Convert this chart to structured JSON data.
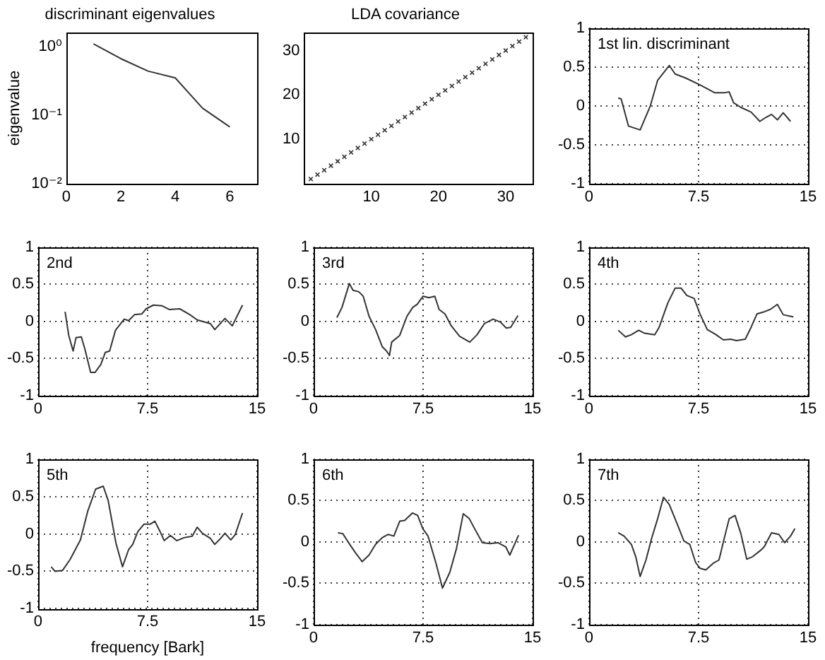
{
  "chart_data": [
    {
      "type": "line",
      "title": "discriminant eigenvalues",
      "ylabel": "eigenvalue",
      "log": "y",
      "x": [
        1,
        2,
        3,
        4,
        5,
        6
      ],
      "series": [
        {
          "color": "#333333",
          "values": [
            1.1,
            0.67,
            0.44,
            0.35,
            0.126,
            0.067
          ]
        }
      ],
      "xlim": [
        0,
        7
      ],
      "xticks": [
        0,
        2,
        4,
        6
      ],
      "ylim": [
        0.01,
        1.6
      ],
      "yticks": [
        {
          "value": 0.01,
          "label": "10⁻²"
        },
        {
          "value": 0.1,
          "label": "10⁻¹"
        },
        {
          "value": 1,
          "label": "10⁰"
        }
      ]
    },
    {
      "type": "scatter",
      "title": "LDA covariance",
      "marker": "cross",
      "x": [
        1,
        2,
        3,
        4,
        5,
        6,
        7,
        8,
        9,
        10,
        11,
        12,
        13,
        14,
        15,
        16,
        17,
        18,
        19,
        20,
        21,
        22,
        23,
        24,
        25,
        26,
        27,
        28,
        29,
        30,
        31,
        32,
        33
      ],
      "series": [
        {
          "color": "#333333",
          "values": [
            1,
            2,
            3,
            4,
            5,
            6,
            7,
            8,
            9,
            10,
            11,
            12,
            13,
            14,
            15,
            16,
            17,
            18,
            19,
            20,
            21,
            22,
            23,
            24,
            25,
            26,
            27,
            28,
            29,
            30,
            31,
            32,
            33
          ]
        }
      ],
      "xlim": [
        0,
        34
      ],
      "xticks": [
        10,
        20,
        30
      ],
      "ylim": [
        0,
        34
      ],
      "yticks": [
        10,
        20,
        30
      ]
    },
    {
      "type": "line",
      "annotations": [
        "1st lin. discriminant"
      ],
      "grid": true,
      "x": [
        2.0,
        2.2,
        2.7,
        3.5,
        4.2,
        4.7,
        5.5,
        5.9,
        6.6,
        7.6,
        8.1,
        8.6,
        9.3,
        9.6,
        9.9,
        10.4,
        11.1,
        11.7,
        12.1,
        12.5,
        12.9,
        13.3,
        13.8
      ],
      "series": [
        {
          "color": "#333333",
          "values": [
            0.1,
            0.09,
            -0.26,
            -0.31,
            0.0,
            0.33,
            0.52,
            0.41,
            0.36,
            0.27,
            0.22,
            0.17,
            0.17,
            0.18,
            0.04,
            -0.02,
            -0.08,
            -0.2,
            -0.15,
            -0.11,
            -0.18,
            -0.09,
            -0.2
          ]
        }
      ],
      "xlim": [
        0,
        15
      ],
      "xticks": [
        0,
        7.5,
        15
      ],
      "ylim": [
        -1,
        1
      ],
      "yticks": [
        -1,
        -0.5,
        0,
        0.5,
        1
      ]
    },
    {
      "type": "line",
      "annotations": [
        "2nd"
      ],
      "grid": true,
      "x": [
        1.85,
        2.1,
        2.4,
        2.6,
        2.96,
        3.2,
        3.6,
        3.9,
        4.3,
        4.6,
        4.9,
        5.3,
        5.9,
        6.2,
        6.6,
        7.1,
        7.4,
        7.9,
        8.5,
        9.0,
        9.7,
        10.4,
        10.9,
        11.8,
        12.1,
        12.8,
        13.3,
        14.0
      ],
      "series": [
        {
          "color": "#333333",
          "values": [
            0.13,
            -0.19,
            -0.4,
            -0.22,
            -0.21,
            -0.37,
            -0.69,
            -0.69,
            -0.58,
            -0.42,
            -0.4,
            -0.12,
            0.03,
            0.01,
            0.09,
            0.1,
            0.17,
            0.22,
            0.21,
            0.16,
            0.17,
            0.09,
            0.02,
            -0.03,
            -0.11,
            0.04,
            -0.06,
            0.22
          ]
        }
      ],
      "xlim": [
        0,
        15
      ],
      "xticks": [
        0,
        7.5,
        15
      ],
      "ylim": [
        -1,
        1
      ],
      "yticks": [
        -1,
        -0.5,
        0,
        0.5,
        1
      ]
    },
    {
      "type": "line",
      "annotations": [
        "3rd"
      ],
      "grid": true,
      "x": [
        1.6,
        1.95,
        2.45,
        2.7,
        3.1,
        3.4,
        3.8,
        4.25,
        4.7,
        5.0,
        5.2,
        5.35,
        5.9,
        6.4,
        6.8,
        7.1,
        7.5,
        7.9,
        8.3,
        8.6,
        9.0,
        9.4,
        10.0,
        10.7,
        11.2,
        11.7,
        12.3,
        12.8,
        13.2,
        13.5,
        14.0
      ],
      "series": [
        {
          "color": "#333333",
          "values": [
            0.05,
            0.19,
            0.51,
            0.42,
            0.4,
            0.34,
            0.07,
            -0.11,
            -0.34,
            -0.4,
            -0.46,
            -0.28,
            -0.19,
            0.07,
            0.19,
            0.23,
            0.34,
            0.32,
            0.34,
            0.16,
            0.1,
            -0.05,
            -0.2,
            -0.28,
            -0.18,
            -0.03,
            0.03,
            -0.01,
            -0.09,
            -0.08,
            0.08
          ]
        }
      ],
      "xlim": [
        0,
        15
      ],
      "xticks": [
        0,
        7.5,
        15
      ],
      "ylim": [
        -1,
        1
      ],
      "yticks": [
        -1,
        -0.5,
        0,
        0.5,
        1
      ]
    },
    {
      "type": "line",
      "annotations": [
        "4th"
      ],
      "grid": true,
      "x": [
        2.0,
        2.5,
        2.9,
        3.4,
        3.8,
        4.5,
        4.8,
        5.4,
        5.9,
        6.3,
        6.7,
        7.2,
        7.6,
        8.1,
        8.7,
        9.2,
        9.7,
        10.1,
        10.7,
        11.1,
        11.5,
        12.0,
        12.4,
        12.9,
        13.3,
        14.0
      ],
      "series": [
        {
          "color": "#333333",
          "values": [
            -0.12,
            -0.21,
            -0.18,
            -0.12,
            -0.16,
            -0.18,
            -0.08,
            0.25,
            0.45,
            0.45,
            0.35,
            0.31,
            0.1,
            -0.11,
            -0.18,
            -0.25,
            -0.24,
            -0.26,
            -0.24,
            -0.08,
            0.1,
            0.13,
            0.16,
            0.23,
            0.09,
            0.06
          ]
        }
      ],
      "xlim": [
        0,
        15
      ],
      "xticks": [
        0,
        7.5,
        15
      ],
      "ylim": [
        -1,
        1
      ],
      "yticks": [
        -1,
        -0.5,
        0,
        0.5,
        1
      ]
    },
    {
      "type": "line",
      "annotations": [
        "5th"
      ],
      "xlabel": "frequency [Bark]",
      "grid": true,
      "x": [
        0.9,
        1.15,
        1.67,
        2.2,
        2.9,
        3.41,
        3.94,
        4.46,
        4.8,
        5.33,
        5.78,
        6.2,
        6.48,
        6.83,
        7.25,
        7.67,
        8.0,
        8.36,
        8.64,
        9.06,
        9.5,
        10.0,
        10.56,
        10.9,
        11.25,
        11.8,
        12.1,
        12.5,
        12.8,
        13.2,
        13.5,
        14.0
      ],
      "series": [
        {
          "color": "#333333",
          "values": [
            -0.44,
            -0.5,
            -0.49,
            -0.34,
            -0.08,
            0.31,
            0.6,
            0.64,
            0.45,
            -0.12,
            -0.44,
            -0.21,
            -0.14,
            0.03,
            0.13,
            0.13,
            0.17,
            0.03,
            -0.09,
            -0.02,
            -0.09,
            -0.05,
            -0.03,
            0.09,
            0.01,
            -0.06,
            -0.14,
            -0.06,
            0.01,
            -0.08,
            -0.01,
            0.28
          ]
        }
      ],
      "xlim": [
        0,
        15
      ],
      "xticks": [
        0,
        7.5,
        15
      ],
      "ylim": [
        -1,
        1
      ],
      "yticks": [
        -1,
        -0.5,
        0,
        0.5,
        1
      ]
    },
    {
      "type": "line",
      "annotations": [
        "6th"
      ],
      "grid": true,
      "x": [
        1.67,
        2.0,
        2.55,
        2.9,
        3.33,
        3.8,
        4.25,
        4.7,
        5.1,
        5.5,
        5.9,
        6.24,
        6.77,
        7.13,
        7.48,
        7.84,
        8.37,
        8.83,
        9.33,
        9.79,
        10.25,
        10.67,
        11.03,
        11.56,
        12.09,
        12.62,
        13.16,
        13.44,
        14.04
      ],
      "series": [
        {
          "color": "#333333",
          "values": [
            0.11,
            0.1,
            -0.05,
            -0.14,
            -0.24,
            -0.16,
            -0.03,
            0.05,
            0.09,
            0.07,
            0.25,
            0.26,
            0.35,
            0.32,
            0.16,
            0.07,
            -0.25,
            -0.56,
            -0.37,
            -0.08,
            0.34,
            0.28,
            0.16,
            -0.01,
            -0.02,
            -0.01,
            -0.06,
            -0.16,
            0.08
          ]
        }
      ],
      "xlim": [
        0,
        15
      ],
      "xticks": [
        0,
        7.5,
        15
      ],
      "ylim": [
        -1,
        1
      ],
      "yticks": [
        -1,
        -0.5,
        0,
        0.5,
        1
      ]
    },
    {
      "type": "line",
      "annotations": [
        "7th"
      ],
      "grid": true,
      "x": [
        2.0,
        2.4,
        2.9,
        3.2,
        3.5,
        3.9,
        4.3,
        4.7,
        5.1,
        5.5,
        6.1,
        6.5,
        6.9,
        7.3,
        7.6,
        8.0,
        8.5,
        8.9,
        9.3,
        9.6,
        10.0,
        10.4,
        10.8,
        11.2,
        11.7,
        12.0,
        12.5,
        13.0,
        13.4,
        13.8,
        14.1
      ],
      "series": [
        {
          "color": "#333333",
          "values": [
            0.11,
            0.07,
            -0.03,
            -0.18,
            -0.42,
            -0.22,
            0.05,
            0.28,
            0.54,
            0.45,
            0.19,
            0.01,
            -0.03,
            -0.25,
            -0.32,
            -0.34,
            -0.26,
            -0.22,
            0.07,
            0.28,
            0.32,
            0.1,
            -0.21,
            -0.18,
            -0.11,
            -0.06,
            0.11,
            0.09,
            -0.01,
            0.07,
            0.16
          ]
        }
      ],
      "xlim": [
        0,
        15
      ],
      "xticks": [
        0,
        7.5,
        15
      ],
      "ylim": [
        -1,
        1
      ],
      "yticks": [
        -1,
        -0.5,
        0,
        0.5,
        1
      ]
    }
  ]
}
